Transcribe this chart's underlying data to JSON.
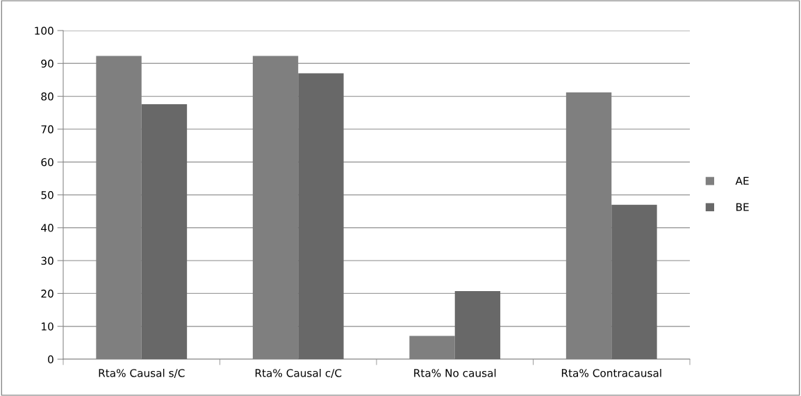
{
  "chart_data": {
    "type": "bar",
    "categories": [
      "Rta% Causal s/C",
      "Rta% Causal c/C",
      "Rta% No causal",
      "Rta% Contracausal"
    ],
    "series": [
      {
        "name": "AE",
        "color": "#7f7f7f",
        "values": [
          92.3,
          92.3,
          7.1,
          81.2
        ]
      },
      {
        "name": "BE",
        "color": "#686868",
        "values": [
          77.6,
          87.0,
          20.7,
          47.0
        ]
      }
    ],
    "ylim": [
      0,
      100
    ],
    "yticks": [
      0,
      10,
      20,
      30,
      40,
      50,
      60,
      70,
      80,
      90,
      100
    ],
    "grid": "y",
    "legend": "right"
  }
}
